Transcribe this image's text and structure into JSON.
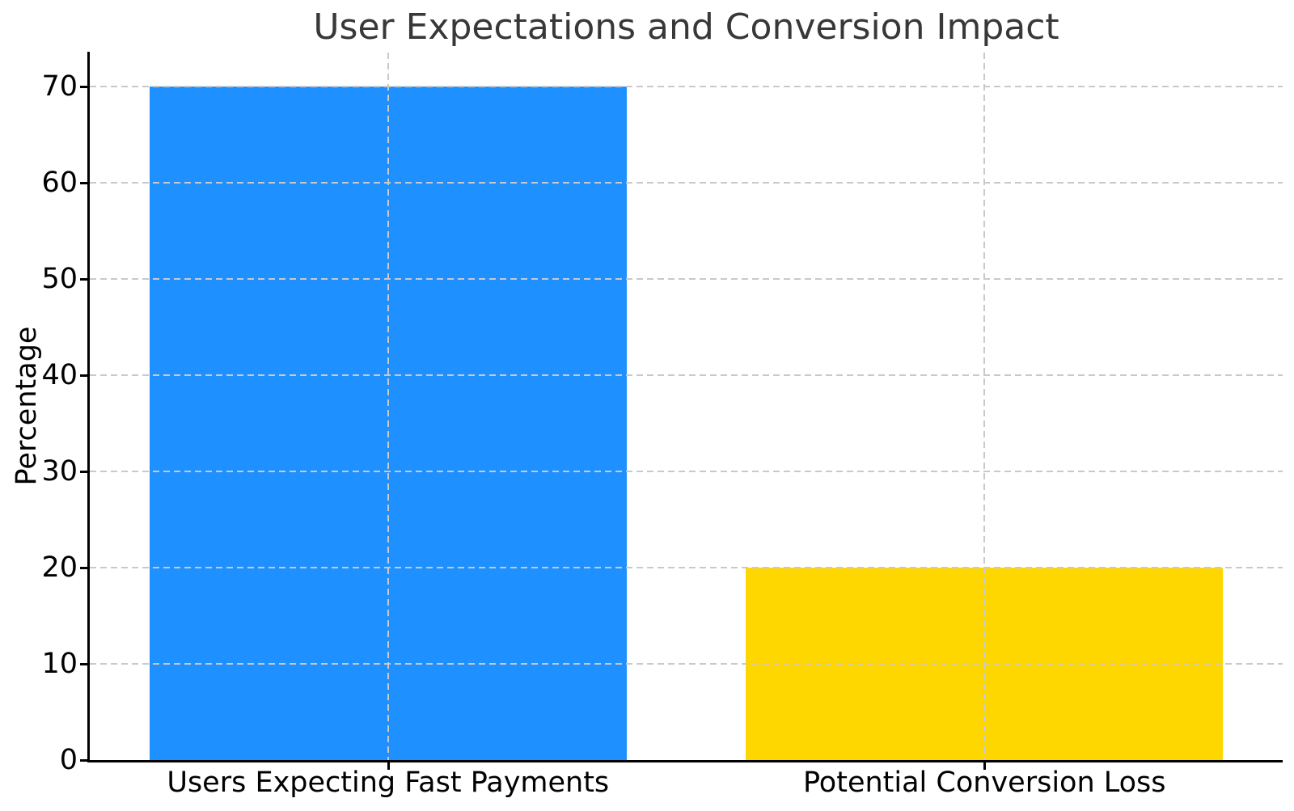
{
  "figure": {
    "background": "#ffffff"
  },
  "chart_data": {
    "type": "bar",
    "title": "User Expectations and Conversion Impact",
    "xlabel": "",
    "ylabel": "Percentage",
    "categories": [
      "Users Expecting Fast Payments",
      "Potential Conversion Loss"
    ],
    "values": [
      70,
      20
    ],
    "bar_colors": [
      "#1E90FF",
      "#FFD700"
    ],
    "yticks": [
      0,
      10,
      20,
      30,
      40,
      50,
      60,
      70
    ],
    "ylim": [
      0,
      73.5
    ],
    "bar_width_fraction": 0.8,
    "grid": "dashed",
    "grid_color": "#c9c9c9",
    "grid_over_bars": true,
    "legend": "none"
  }
}
